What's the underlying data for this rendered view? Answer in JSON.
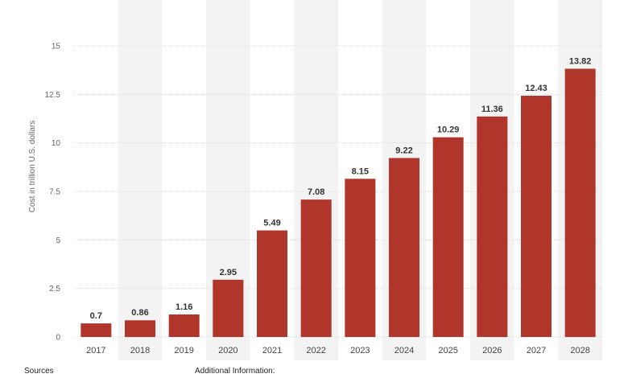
{
  "footer": {
    "sources_label": "Sources",
    "additional_info_label": "Additional Information:"
  },
  "chart_data": {
    "type": "bar",
    "title": "",
    "xlabel": "",
    "ylabel": "Cost in trillion U.S. dollars",
    "categories": [
      "2017",
      "2018",
      "2019",
      "2020",
      "2021",
      "2022",
      "2023",
      "2024",
      "2025",
      "2026",
      "2027",
      "2028"
    ],
    "values": [
      0.7,
      0.86,
      1.16,
      2.95,
      5.49,
      7.08,
      8.15,
      9.22,
      10.29,
      11.36,
      12.43,
      13.82
    ],
    "value_labels": [
      "0.7",
      "0.86",
      "1.16",
      "2.95",
      "5.49",
      "7.08",
      "8.15",
      "9.22",
      "10.29",
      "11.36",
      "12.43",
      "13.82"
    ],
    "ylim": [
      0,
      15
    ],
    "yticks": [
      0,
      2.5,
      5,
      7.5,
      10,
      12.5,
      15
    ],
    "ytick_labels": [
      "0",
      "2.5",
      "5",
      "7.5",
      "10",
      "12.5",
      "15"
    ],
    "grid": true,
    "bar_color": "#b0352b",
    "alt_column_color": "#f3f3f3"
  }
}
